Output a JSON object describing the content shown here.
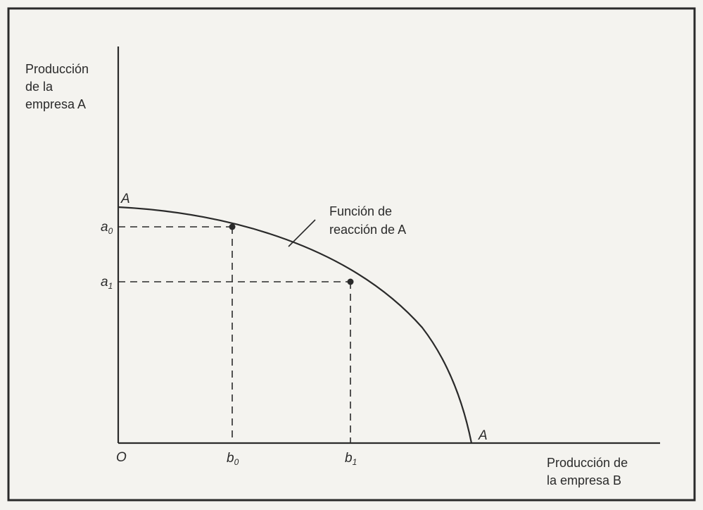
{
  "y_axis_label": [
    "Producción",
    "de la",
    "empresa A"
  ],
  "x_axis_label": [
    "Producción de",
    "la empresa B"
  ],
  "origin_label": "O",
  "curve": {
    "start_label": "A",
    "end_label": "A",
    "annotation": [
      "Función de",
      "reacción de A"
    ]
  },
  "points": [
    {
      "name": "p0",
      "x_label": "b",
      "x_sub": "0",
      "y_label": "a",
      "y_sub": "0"
    },
    {
      "name": "p1",
      "x_label": "b",
      "x_sub": "1",
      "y_label": "a",
      "y_sub": "1"
    }
  ],
  "colors": {
    "ink": "#2a2a2a",
    "background": "#f4f3ef"
  }
}
